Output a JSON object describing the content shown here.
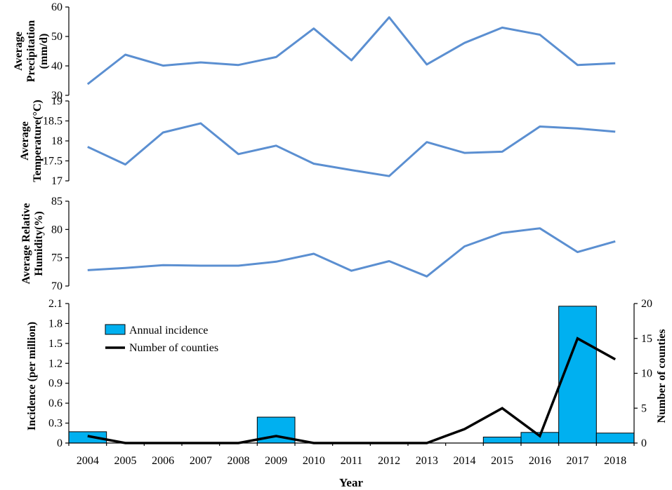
{
  "colors": {
    "climate_line": "#5B8FD1",
    "bar_fill": "#00B0F0",
    "bar_stroke": "#000000",
    "counties_line": "#000000"
  },
  "years": [
    "2004",
    "2005",
    "2006",
    "2007",
    "2008",
    "2009",
    "2010",
    "2011",
    "2012",
    "2013",
    "2014",
    "2015",
    "2016",
    "2017",
    "2018"
  ],
  "chart_data": [
    {
      "type": "line",
      "id": "precipitation",
      "ylabel_lines": [
        "Average",
        "Precipitation",
        "(mm/d)"
      ],
      "ylim": [
        30,
        60
      ],
      "yticks": [
        30,
        40,
        50,
        60
      ],
      "values": [
        33.8,
        43.8,
        40.1,
        41.2,
        40.3,
        43.0,
        52.7,
        41.9,
        56.5,
        40.5,
        47.8,
        53.0,
        50.6,
        40.3,
        40.9
      ]
    },
    {
      "type": "line",
      "id": "temperature",
      "ylabel_lines": [
        "Average",
        "Temperature(°C)"
      ],
      "ylim": [
        17,
        19
      ],
      "yticks": [
        17,
        17.5,
        18,
        18.5,
        19
      ],
      "values": [
        17.85,
        17.41,
        18.21,
        18.44,
        17.67,
        17.88,
        17.43,
        17.27,
        17.12,
        17.97,
        17.7,
        17.73,
        18.36,
        18.31,
        18.23
      ]
    },
    {
      "type": "line",
      "id": "humidity",
      "ylabel_lines": [
        "Average Relative",
        "Humidity(%)"
      ],
      "ylim": [
        70,
        85
      ],
      "yticks": [
        70,
        75,
        80,
        85
      ],
      "values": [
        72.8,
        73.2,
        73.7,
        73.6,
        73.6,
        74.3,
        75.7,
        72.7,
        74.4,
        71.7,
        77.0,
        79.4,
        80.2,
        76.0,
        77.9
      ]
    },
    {
      "type": "bar+line",
      "id": "incidence",
      "ylabel_left": "Incidence (per million)",
      "ylabel_right": "Number of  counties",
      "xlabel": "Year",
      "ylim_left": [
        0,
        2.1
      ],
      "yticks_left": [
        0,
        0.3,
        0.6,
        0.9,
        1.2,
        1.5,
        1.8,
        2.1
      ],
      "ylim_right": [
        0,
        20
      ],
      "yticks_right": [
        0,
        5,
        10,
        15,
        20
      ],
      "series": [
        {
          "name": "Annual incidence",
          "type": "bar",
          "axis": "left",
          "values": [
            0.17,
            0,
            0,
            0,
            0,
            0.39,
            0,
            0,
            0,
            0,
            0,
            0.09,
            0.16,
            2.06,
            0.15
          ]
        },
        {
          "name": "Number of counties",
          "type": "line",
          "axis": "right",
          "values": [
            1,
            0,
            0,
            0,
            0,
            1,
            0,
            0,
            0,
            0,
            2,
            5,
            1,
            15,
            12
          ]
        }
      ]
    }
  ]
}
